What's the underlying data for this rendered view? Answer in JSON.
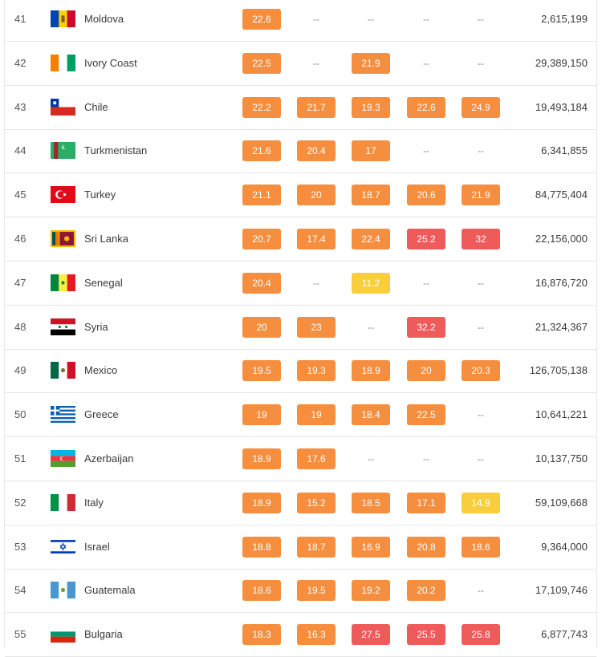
{
  "rows": [
    {
      "rank": "41",
      "country": "Moldova",
      "flag": "moldova-flag-icon",
      "values": [
        "22.6",
        "--",
        "--",
        "--",
        "--"
      ],
      "colors": [
        "orange",
        "dash",
        "dash",
        "dash",
        "dash"
      ],
      "population": "2,615,199"
    },
    {
      "rank": "42",
      "country": "Ivory Coast",
      "flag": "ivory-coast-flag-icon",
      "values": [
        "22.5",
        "--",
        "21.9",
        "--",
        "--"
      ],
      "colors": [
        "orange",
        "dash",
        "orange",
        "dash",
        "dash"
      ],
      "population": "29,389,150"
    },
    {
      "rank": "43",
      "country": "Chile",
      "flag": "chile-flag-icon",
      "values": [
        "22.2",
        "21.7",
        "19.3",
        "22.6",
        "24.9"
      ],
      "colors": [
        "orange",
        "orange",
        "orange",
        "orange",
        "orange"
      ],
      "population": "19,493,184"
    },
    {
      "rank": "44",
      "country": "Turkmenistan",
      "flag": "turkmenistan-flag-icon",
      "values": [
        "21.6",
        "20.4",
        "17",
        "--",
        "--"
      ],
      "colors": [
        "orange",
        "orange",
        "orange",
        "dash",
        "dash"
      ],
      "population": "6,341,855"
    },
    {
      "rank": "45",
      "country": "Turkey",
      "flag": "turkey-flag-icon",
      "values": [
        "21.1",
        "20",
        "18.7",
        "20.6",
        "21.9"
      ],
      "colors": [
        "orange",
        "orange",
        "orange",
        "orange",
        "orange"
      ],
      "population": "84,775,404"
    },
    {
      "rank": "46",
      "country": "Sri Lanka",
      "flag": "sri-lanka-flag-icon",
      "values": [
        "20.7",
        "17.4",
        "22.4",
        "25.2",
        "32"
      ],
      "colors": [
        "orange",
        "orange",
        "orange",
        "red",
        "red"
      ],
      "population": "22,156,000"
    },
    {
      "rank": "47",
      "country": "Senegal",
      "flag": "senegal-flag-icon",
      "values": [
        "20.4",
        "--",
        "11.2",
        "--",
        "--"
      ],
      "colors": [
        "orange",
        "dash",
        "yellow",
        "dash",
        "dash"
      ],
      "population": "16,876,720"
    },
    {
      "rank": "48",
      "country": "Syria",
      "flag": "syria-flag-icon",
      "values": [
        "20",
        "23",
        "--",
        "32.2",
        "--"
      ],
      "colors": [
        "orange",
        "orange",
        "dash",
        "red",
        "dash"
      ],
      "population": "21,324,367"
    },
    {
      "rank": "49",
      "country": "Mexico",
      "flag": "mexico-flag-icon",
      "values": [
        "19.5",
        "19.3",
        "18.9",
        "20",
        "20.3"
      ],
      "colors": [
        "orange",
        "orange",
        "orange",
        "orange",
        "orange"
      ],
      "population": "126,705,138"
    },
    {
      "rank": "50",
      "country": "Greece",
      "flag": "greece-flag-icon",
      "values": [
        "19",
        "19",
        "18.4",
        "22.5",
        "--"
      ],
      "colors": [
        "orange",
        "orange",
        "orange",
        "orange",
        "dash"
      ],
      "population": "10,641,221"
    },
    {
      "rank": "51",
      "country": "Azerbaijan",
      "flag": "azerbaijan-flag-icon",
      "values": [
        "18.9",
        "17.6",
        "--",
        "--",
        "--"
      ],
      "colors": [
        "orange",
        "orange",
        "dash",
        "dash",
        "dash"
      ],
      "population": "10,137,750"
    },
    {
      "rank": "52",
      "country": "Italy",
      "flag": "italy-flag-icon",
      "values": [
        "18.9",
        "15.2",
        "18.5",
        "17.1",
        "14.9"
      ],
      "colors": [
        "orange",
        "orange",
        "orange",
        "orange",
        "yellow"
      ],
      "population": "59,109,668"
    },
    {
      "rank": "53",
      "country": "Israel",
      "flag": "israel-flag-icon",
      "values": [
        "18.8",
        "18.7",
        "16.9",
        "20.8",
        "18.6"
      ],
      "colors": [
        "orange",
        "orange",
        "orange",
        "orange",
        "orange"
      ],
      "population": "9,364,000"
    },
    {
      "rank": "54",
      "country": "Guatemala",
      "flag": "guatemala-flag-icon",
      "values": [
        "18.6",
        "19.5",
        "19.2",
        "20.2",
        "--"
      ],
      "colors": [
        "orange",
        "orange",
        "orange",
        "orange",
        "dash"
      ],
      "population": "17,109,746"
    },
    {
      "rank": "55",
      "country": "Bulgaria",
      "flag": "bulgaria-flag-icon",
      "values": [
        "18.3",
        "16.3",
        "27.5",
        "25.5",
        "25.8"
      ],
      "colors": [
        "orange",
        "orange",
        "red",
        "red",
        "red"
      ],
      "population": "6,877,743"
    }
  ],
  "palette": {
    "orange": "#f58e3f",
    "red": "#ef5a5a",
    "yellow": "#f9ce3c",
    "border": "#e6e6e6"
  }
}
